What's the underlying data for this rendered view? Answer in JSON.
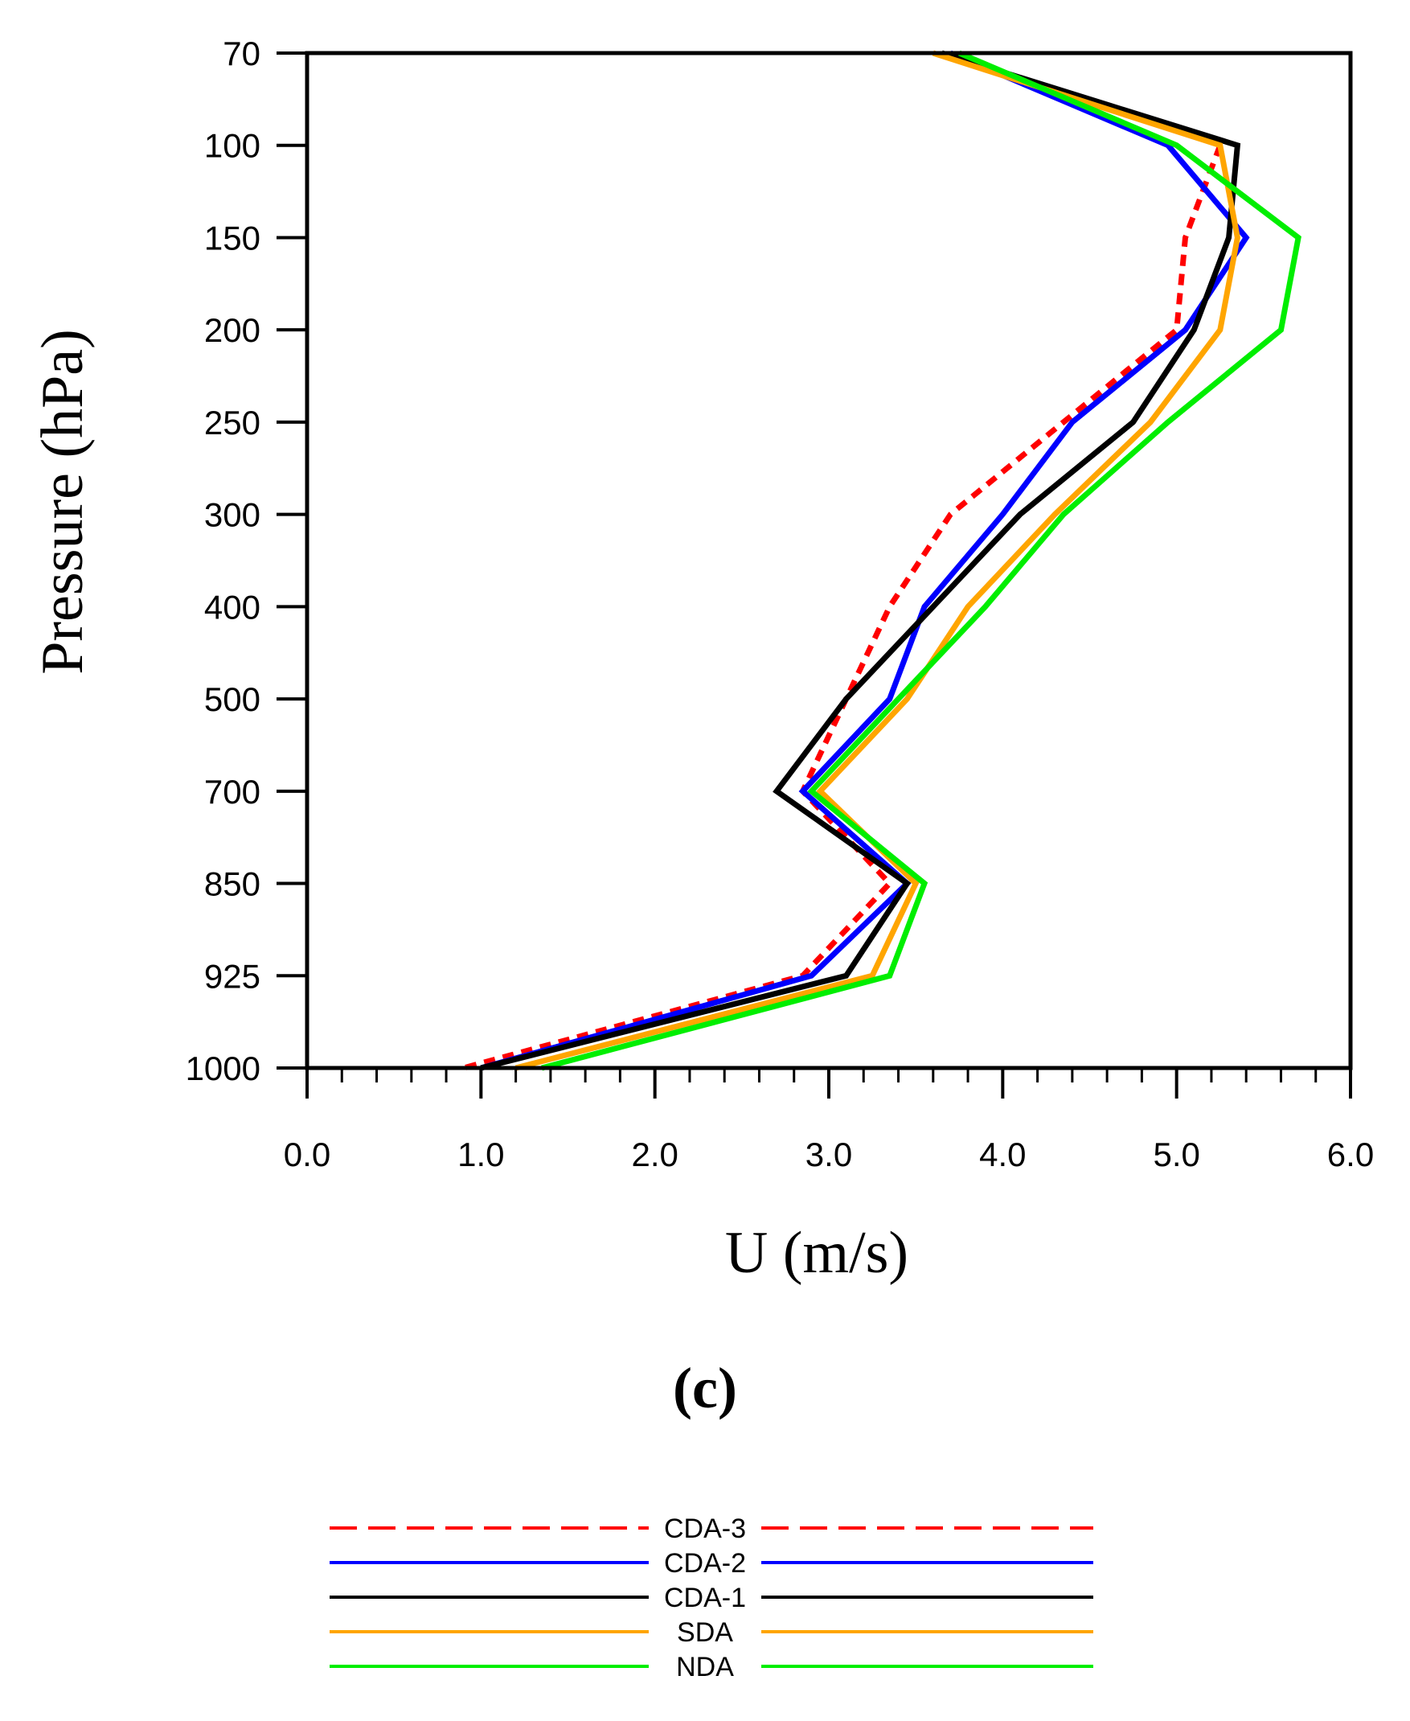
{
  "chart_data": {
    "type": "line",
    "xlabel": "U (m/s)",
    "ylabel": "Pressure (hPa)",
    "panel_label": "(c)",
    "xlim": [
      0.0,
      6.0
    ],
    "x_ticks": [
      "0.0",
      "1.0",
      "2.0",
      "3.0",
      "4.0",
      "5.0",
      "6.0"
    ],
    "pressure_levels": [
      "70",
      "100",
      "150",
      "200",
      "250",
      "300",
      "400",
      "500",
      "700",
      "850",
      "925",
      "1000"
    ],
    "y_scale": "categorical-levels, 70 at top, 1000 at bottom",
    "legend_position": "bottom-center",
    "series": [
      {
        "name": "CDA-3",
        "color": "#ff0000",
        "dash": true,
        "values": [
          null,
          5.25,
          5.05,
          5.0,
          4.35,
          3.7,
          3.35,
          3.1,
          2.85,
          3.35,
          2.85,
          0.9
        ]
      },
      {
        "name": "CDA-2",
        "color": "#0000ff",
        "dash": false,
        "values": [
          3.7,
          4.95,
          5.4,
          5.05,
          4.4,
          4.0,
          3.55,
          3.35,
          2.85,
          3.45,
          2.9,
          1.0
        ]
      },
      {
        "name": "CDA-1",
        "color": "#000000",
        "dash": false,
        "values": [
          3.65,
          5.35,
          5.3,
          5.1,
          4.75,
          4.1,
          3.6,
          3.1,
          2.7,
          3.45,
          3.1,
          1.0
        ]
      },
      {
        "name": "SDA",
        "color": "#ffa500",
        "dash": false,
        "values": [
          3.6,
          5.25,
          5.35,
          5.25,
          4.85,
          4.3,
          3.8,
          3.45,
          2.95,
          3.5,
          3.25,
          1.2
        ]
      },
      {
        "name": "NDA",
        "color": "#00ee00",
        "dash": false,
        "values": [
          3.75,
          5.0,
          5.7,
          5.6,
          4.95,
          4.35,
          3.9,
          3.4,
          2.9,
          3.55,
          3.35,
          1.35
        ]
      }
    ]
  }
}
